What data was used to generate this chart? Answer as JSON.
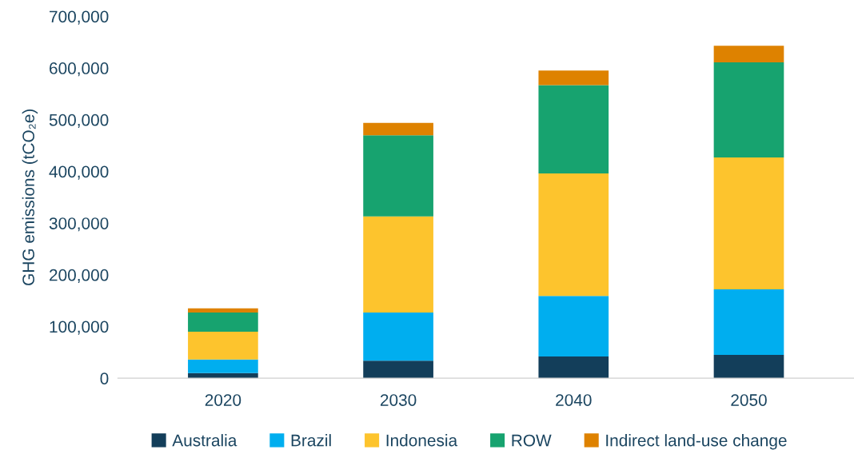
{
  "chart_data": {
    "type": "bar",
    "stacked": true,
    "ylabel": "GHG emissions (tCO₂e)",
    "categories": [
      "2020",
      "2030",
      "2040",
      "2050"
    ],
    "series": [
      {
        "name": "Australia",
        "color": "#133e5a",
        "values": [
          10000,
          34000,
          42000,
          45000
        ]
      },
      {
        "name": "Brazil",
        "color": "#00aeef",
        "values": [
          26000,
          93000,
          117000,
          127000
        ]
      },
      {
        "name": "Indonesia",
        "color": "#fdc42d",
        "values": [
          54000,
          186000,
          237000,
          255000
        ]
      },
      {
        "name": "ROW",
        "color": "#17a36f",
        "values": [
          37000,
          157000,
          171000,
          184000
        ]
      },
      {
        "name": "Indirect land-use change",
        "color": "#de8200",
        "values": [
          8000,
          24000,
          28000,
          32000
        ]
      }
    ],
    "ylim": [
      0,
      700000
    ],
    "yticks": [
      {
        "value": 0,
        "label": "0"
      },
      {
        "value": 100000,
        "label": "100,000"
      },
      {
        "value": 200000,
        "label": "200,000"
      },
      {
        "value": 300000,
        "label": "300,000"
      },
      {
        "value": 400000,
        "label": "400,000"
      },
      {
        "value": 500000,
        "label": "500,000"
      },
      {
        "value": 600000,
        "label": "600,000"
      },
      {
        "value": 700000,
        "label": "700,000"
      }
    ],
    "grid": false,
    "legend": "bottom"
  }
}
